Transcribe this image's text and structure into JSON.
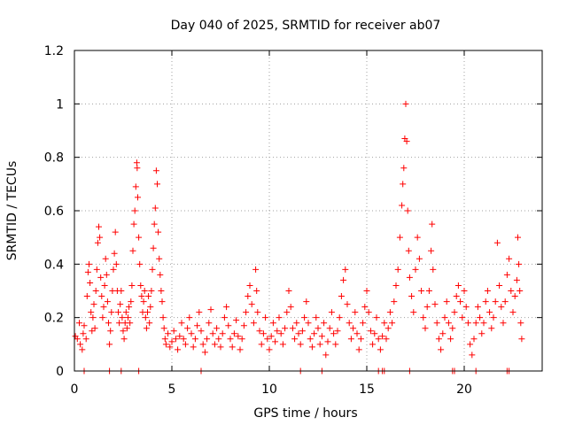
{
  "chart_data": {
    "type": "scatter",
    "title": "Day 040 of 2025, SRMTID for receiver ab07",
    "xlabel": "GPS time / hours",
    "ylabel": "SRMTID / TECUs",
    "xlim": [
      0,
      24
    ],
    "ylim": [
      0,
      1.2
    ],
    "xticks": [
      0,
      5,
      10,
      15,
      20
    ],
    "xtick_labels": [
      "0",
      "5",
      "10",
      "15",
      "20"
    ],
    "yticks": [
      0,
      0.2,
      0.4,
      0.6,
      0.8,
      1.0,
      1.2
    ],
    "ytick_labels": [
      "0",
      "0.2",
      "0.4",
      "0.6",
      "0.8",
      "1",
      "1.2"
    ],
    "grid": true,
    "marker": "plus",
    "series_color": "#ff0000",
    "series": [
      {
        "name": "SRMTID",
        "points": [
          [
            0.05,
            0.13
          ],
          [
            0.15,
            0.12
          ],
          [
            0.25,
            0.18
          ],
          [
            0.3,
            0.1
          ],
          [
            0.4,
            0.08
          ],
          [
            0.45,
            0.14
          ],
          [
            0.5,
            0.17
          ],
          [
            0.6,
            0.12
          ],
          [
            0.65,
            0.28
          ],
          [
            0.7,
            0.37
          ],
          [
            0.75,
            0.4
          ],
          [
            0.8,
            0.33
          ],
          [
            0.85,
            0.22
          ],
          [
            0.9,
            0.15
          ],
          [
            0.95,
            0.2
          ],
          [
            1.0,
            0.25
          ],
          [
            1.05,
            0.16
          ],
          [
            1.1,
            0.3
          ],
          [
            1.15,
            0.38
          ],
          [
            1.2,
            0.48
          ],
          [
            1.25,
            0.54
          ],
          [
            1.3,
            0.5
          ],
          [
            1.35,
            0.35
          ],
          [
            1.4,
            0.28
          ],
          [
            1.45,
            0.2
          ],
          [
            1.5,
            0.24
          ],
          [
            1.55,
            0.32
          ],
          [
            1.6,
            0.42
          ],
          [
            1.65,
            0.36
          ],
          [
            1.7,
            0.26
          ],
          [
            1.75,
            0.18
          ],
          [
            1.8,
            0.1
          ],
          [
            1.85,
            0.15
          ],
          [
            1.9,
            0.22
          ],
          [
            1.95,
            0.3
          ],
          [
            2.0,
            0.38
          ],
          [
            2.05,
            0.44
          ],
          [
            2.1,
            0.52
          ],
          [
            2.15,
            0.4
          ],
          [
            2.2,
            0.3
          ],
          [
            2.25,
            0.22
          ],
          [
            2.3,
            0.18
          ],
          [
            2.35,
            0.25
          ],
          [
            2.4,
            0.3
          ],
          [
            2.45,
            0.2
          ],
          [
            2.5,
            0.15
          ],
          [
            2.55,
            0.12
          ],
          [
            2.6,
            0.18
          ],
          [
            2.65,
            0.22
          ],
          [
            2.7,
            0.16
          ],
          [
            2.75,
            0.2
          ],
          [
            2.8,
            0.24
          ],
          [
            2.85,
            0.18
          ],
          [
            2.9,
            0.26
          ],
          [
            2.95,
            0.32
          ],
          [
            3.0,
            0.45
          ],
          [
            3.05,
            0.55
          ],
          [
            3.1,
            0.6
          ],
          [
            3.15,
            0.69
          ],
          [
            3.2,
            0.78
          ],
          [
            3.22,
            0.76
          ],
          [
            3.25,
            0.65
          ],
          [
            3.3,
            0.5
          ],
          [
            3.35,
            0.4
          ],
          [
            3.4,
            0.32
          ],
          [
            3.45,
            0.28
          ],
          [
            3.5,
            0.22
          ],
          [
            3.55,
            0.26
          ],
          [
            3.6,
            0.3
          ],
          [
            3.65,
            0.2
          ],
          [
            3.7,
            0.16
          ],
          [
            3.75,
            0.22
          ],
          [
            3.8,
            0.28
          ],
          [
            3.85,
            0.18
          ],
          [
            3.9,
            0.24
          ],
          [
            3.95,
            0.3
          ],
          [
            4.0,
            0.38
          ],
          [
            4.05,
            0.46
          ],
          [
            4.1,
            0.55
          ],
          [
            4.15,
            0.61
          ],
          [
            4.2,
            0.75
          ],
          [
            4.25,
            0.7
          ],
          [
            4.3,
            0.52
          ],
          [
            4.35,
            0.42
          ],
          [
            4.4,
            0.36
          ],
          [
            4.45,
            0.3
          ],
          [
            4.5,
            0.26
          ],
          [
            4.55,
            0.2
          ],
          [
            4.6,
            0.16
          ],
          [
            4.65,
            0.12
          ],
          [
            4.7,
            0.1
          ],
          [
            4.8,
            0.14
          ],
          [
            4.9,
            0.09
          ],
          [
            5.0,
            0.11
          ],
          [
            5.1,
            0.15
          ],
          [
            5.2,
            0.12
          ],
          [
            5.3,
            0.08
          ],
          [
            5.4,
            0.13
          ],
          [
            5.5,
            0.18
          ],
          [
            5.6,
            0.12
          ],
          [
            5.7,
            0.1
          ],
          [
            5.8,
            0.16
          ],
          [
            5.9,
            0.2
          ],
          [
            6.0,
            0.14
          ],
          [
            6.1,
            0.09
          ],
          [
            6.2,
            0.12
          ],
          [
            6.3,
            0.17
          ],
          [
            6.4,
            0.22
          ],
          [
            6.5,
            0.15
          ],
          [
            6.6,
            0.1
          ],
          [
            6.7,
            0.07
          ],
          [
            6.8,
            0.12
          ],
          [
            6.9,
            0.18
          ],
          [
            7.0,
            0.23
          ],
          [
            7.1,
            0.14
          ],
          [
            7.2,
            0.1
          ],
          [
            7.3,
            0.16
          ],
          [
            7.4,
            0.12
          ],
          [
            7.5,
            0.09
          ],
          [
            7.6,
            0.14
          ],
          [
            7.7,
            0.2
          ],
          [
            7.8,
            0.24
          ],
          [
            7.9,
            0.17
          ],
          [
            8.0,
            0.12
          ],
          [
            8.1,
            0.09
          ],
          [
            8.2,
            0.14
          ],
          [
            8.3,
            0.19
          ],
          [
            8.4,
            0.13
          ],
          [
            8.5,
            0.08
          ],
          [
            8.6,
            0.12
          ],
          [
            8.7,
            0.17
          ],
          [
            8.8,
            0.22
          ],
          [
            8.9,
            0.28
          ],
          [
            9.0,
            0.32
          ],
          [
            9.1,
            0.25
          ],
          [
            9.2,
            0.18
          ],
          [
            9.3,
            0.38
          ],
          [
            9.35,
            0.3
          ],
          [
            9.4,
            0.22
          ],
          [
            9.5,
            0.15
          ],
          [
            9.6,
            0.1
          ],
          [
            9.7,
            0.14
          ],
          [
            9.8,
            0.2
          ],
          [
            9.9,
            0.12
          ],
          [
            10.0,
            0.08
          ],
          [
            10.1,
            0.13
          ],
          [
            10.2,
            0.18
          ],
          [
            10.3,
            0.11
          ],
          [
            10.4,
            0.15
          ],
          [
            10.5,
            0.2
          ],
          [
            10.6,
            0.14
          ],
          [
            10.7,
            0.1
          ],
          [
            10.8,
            0.16
          ],
          [
            10.9,
            0.22
          ],
          [
            11.0,
            0.3
          ],
          [
            11.1,
            0.24
          ],
          [
            11.2,
            0.16
          ],
          [
            11.3,
            0.12
          ],
          [
            11.4,
            0.18
          ],
          [
            11.5,
            0.14
          ],
          [
            11.6,
            0.1
          ],
          [
            11.7,
            0.15
          ],
          [
            11.8,
            0.2
          ],
          [
            11.9,
            0.26
          ],
          [
            12.0,
            0.18
          ],
          [
            12.1,
            0.12
          ],
          [
            12.2,
            0.09
          ],
          [
            12.3,
            0.14
          ],
          [
            12.4,
            0.2
          ],
          [
            12.5,
            0.16
          ],
          [
            12.6,
            0.1
          ],
          [
            12.7,
            0.13
          ],
          [
            12.8,
            0.18
          ],
          [
            12.9,
            0.06
          ],
          [
            13.0,
            0.11
          ],
          [
            13.1,
            0.16
          ],
          [
            13.2,
            0.22
          ],
          [
            13.3,
            0.14
          ],
          [
            13.4,
            0.1
          ],
          [
            13.5,
            0.15
          ],
          [
            13.6,
            0.2
          ],
          [
            13.7,
            0.28
          ],
          [
            13.8,
            0.34
          ],
          [
            13.9,
            0.38
          ],
          [
            14.0,
            0.25
          ],
          [
            14.1,
            0.18
          ],
          [
            14.2,
            0.12
          ],
          [
            14.3,
            0.16
          ],
          [
            14.4,
            0.22
          ],
          [
            14.5,
            0.14
          ],
          [
            14.6,
            0.08
          ],
          [
            14.7,
            0.12
          ],
          [
            14.8,
            0.18
          ],
          [
            14.9,
            0.24
          ],
          [
            15.0,
            0.3
          ],
          [
            15.1,
            0.22
          ],
          [
            15.2,
            0.15
          ],
          [
            15.3,
            0.1
          ],
          [
            15.4,
            0.14
          ],
          [
            15.5,
            0.2
          ],
          [
            15.6,
            0.12
          ],
          [
            15.7,
            0.08
          ],
          [
            15.8,
            0.13
          ],
          [
            15.9,
            0.18
          ],
          [
            16.0,
            0.12
          ],
          [
            16.1,
            0.16
          ],
          [
            16.2,
            0.22
          ],
          [
            16.3,
            0.18
          ],
          [
            16.4,
            0.26
          ],
          [
            16.5,
            0.32
          ],
          [
            16.6,
            0.38
          ],
          [
            16.7,
            0.5
          ],
          [
            16.8,
            0.62
          ],
          [
            16.85,
            0.7
          ],
          [
            16.9,
            0.76
          ],
          [
            16.95,
            0.87
          ],
          [
            17.0,
            1.0
          ],
          [
            17.05,
            0.86
          ],
          [
            17.1,
            0.6
          ],
          [
            17.15,
            0.45
          ],
          [
            17.2,
            0.35
          ],
          [
            17.3,
            0.28
          ],
          [
            17.4,
            0.22
          ],
          [
            17.5,
            0.38
          ],
          [
            17.6,
            0.5
          ],
          [
            17.7,
            0.42
          ],
          [
            17.8,
            0.3
          ],
          [
            17.9,
            0.2
          ],
          [
            18.0,
            0.16
          ],
          [
            18.1,
            0.24
          ],
          [
            18.2,
            0.3
          ],
          [
            18.3,
            0.45
          ],
          [
            18.35,
            0.55
          ],
          [
            18.4,
            0.38
          ],
          [
            18.5,
            0.25
          ],
          [
            18.6,
            0.18
          ],
          [
            18.7,
            0.12
          ],
          [
            18.8,
            0.08
          ],
          [
            18.9,
            0.14
          ],
          [
            19.0,
            0.2
          ],
          [
            19.1,
            0.26
          ],
          [
            19.2,
            0.18
          ],
          [
            19.3,
            0.12
          ],
          [
            19.4,
            0.16
          ],
          [
            19.5,
            0.22
          ],
          [
            19.6,
            0.28
          ],
          [
            19.7,
            0.32
          ],
          [
            19.8,
            0.26
          ],
          [
            19.9,
            0.2
          ],
          [
            20.0,
            0.3
          ],
          [
            20.1,
            0.24
          ],
          [
            20.2,
            0.18
          ],
          [
            20.3,
            0.1
          ],
          [
            20.4,
            0.06
          ],
          [
            20.5,
            0.12
          ],
          [
            20.6,
            0.18
          ],
          [
            20.7,
            0.24
          ],
          [
            20.8,
            0.2
          ],
          [
            20.9,
            0.14
          ],
          [
            21.0,
            0.18
          ],
          [
            21.1,
            0.26
          ],
          [
            21.2,
            0.3
          ],
          [
            21.3,
            0.22
          ],
          [
            21.4,
            0.16
          ],
          [
            21.5,
            0.2
          ],
          [
            21.6,
            0.26
          ],
          [
            21.7,
            0.48
          ],
          [
            21.8,
            0.32
          ],
          [
            21.9,
            0.24
          ],
          [
            22.0,
            0.18
          ],
          [
            22.1,
            0.26
          ],
          [
            22.2,
            0.36
          ],
          [
            22.3,
            0.42
          ],
          [
            22.4,
            0.3
          ],
          [
            22.5,
            0.22
          ],
          [
            22.6,
            0.28
          ],
          [
            22.7,
            0.34
          ],
          [
            22.75,
            0.5
          ],
          [
            22.8,
            0.4
          ],
          [
            22.85,
            0.3
          ],
          [
            22.9,
            0.18
          ],
          [
            22.95,
            0.12
          ]
        ],
        "zero_points": [
          0.5,
          1.8,
          2.4,
          3.3,
          6.5,
          11.6,
          12.7,
          15.6,
          15.8,
          15.9,
          17.2,
          19.4,
          19.5,
          20.6,
          22.2,
          22.3
        ]
      }
    ]
  }
}
